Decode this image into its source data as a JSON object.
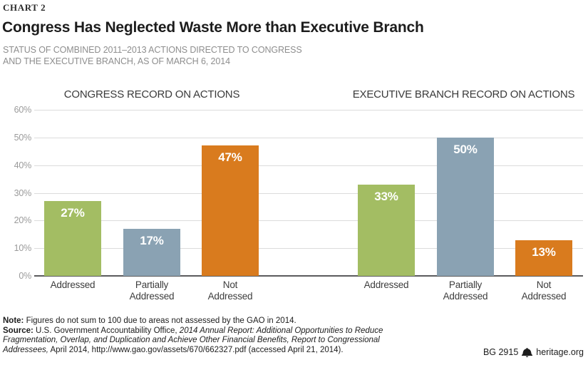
{
  "header": {
    "eyebrow": "CHART 2",
    "title": "Congress Has Neglected Waste More than Executive Branch",
    "subtitle": "STATUS OF COMBINED 2011–2013 ACTIONS DIRECTED TO CONGRESS\nAND THE EXECUTIVE BRANCH, AS OF MARCH 6, 2014"
  },
  "chart_data": {
    "type": "bar",
    "groups": [
      {
        "title": "CONGRESS RECORD ON ACTIONS",
        "categories": [
          "Addressed",
          "Partially Addressed",
          "Not Addressed"
        ],
        "values": [
          27,
          17,
          47
        ]
      },
      {
        "title": "EXECUTIVE BRANCH RECORD ON ACTIONS",
        "categories": [
          "Addressed",
          "Partially Addressed",
          "Not Addressed"
        ],
        "values": [
          33,
          50,
          13
        ]
      }
    ],
    "value_suffix": "%",
    "ylim": [
      0,
      60
    ],
    "ytick_step": 10,
    "yticks": [
      "0%",
      "10%",
      "20%",
      "30%",
      "40%",
      "50%",
      "60%"
    ],
    "grid": true,
    "legend": "none",
    "bar_colors": [
      "#a3bd63",
      "#8aa2b3",
      "#d97b1e"
    ],
    "bar_color_meaning": {
      "Addressed": "#a3bd63",
      "Partially Addressed": "#8aa2b3",
      "Not Addressed": "#d97b1e"
    }
  },
  "footer": {
    "note_label": "Note:",
    "note_text": " Figures do not sum to 100 due to areas not assessed by the GAO in 2014.",
    "source_label": "Source:",
    "source_pre": " U.S. Government Accountability Office, ",
    "source_italic": "2014 Annual Report: Additional Opportunities to Reduce Fragmentation, Overlap, and Duplication and Achieve Other Financial Benefits, Report to Congressional Addressees,",
    "source_post": " April 2014, http://www.gao.gov/assets/670/662327.pdf (accessed April 21, 2014).",
    "credit_id": "BG 2915",
    "credit_site": "heritage.org"
  },
  "colors": {
    "title_text": "#1c1c1c",
    "subtitle_text": "#8e8e8e",
    "gridline": "#dcdcdc",
    "axis_line": "#5b5b5d",
    "tick_text": "#9b9b9b",
    "bar_value_text": "#ffffff",
    "green": "#a3bd63",
    "blue_gray": "#8aa2b3",
    "orange": "#d97b1e"
  }
}
